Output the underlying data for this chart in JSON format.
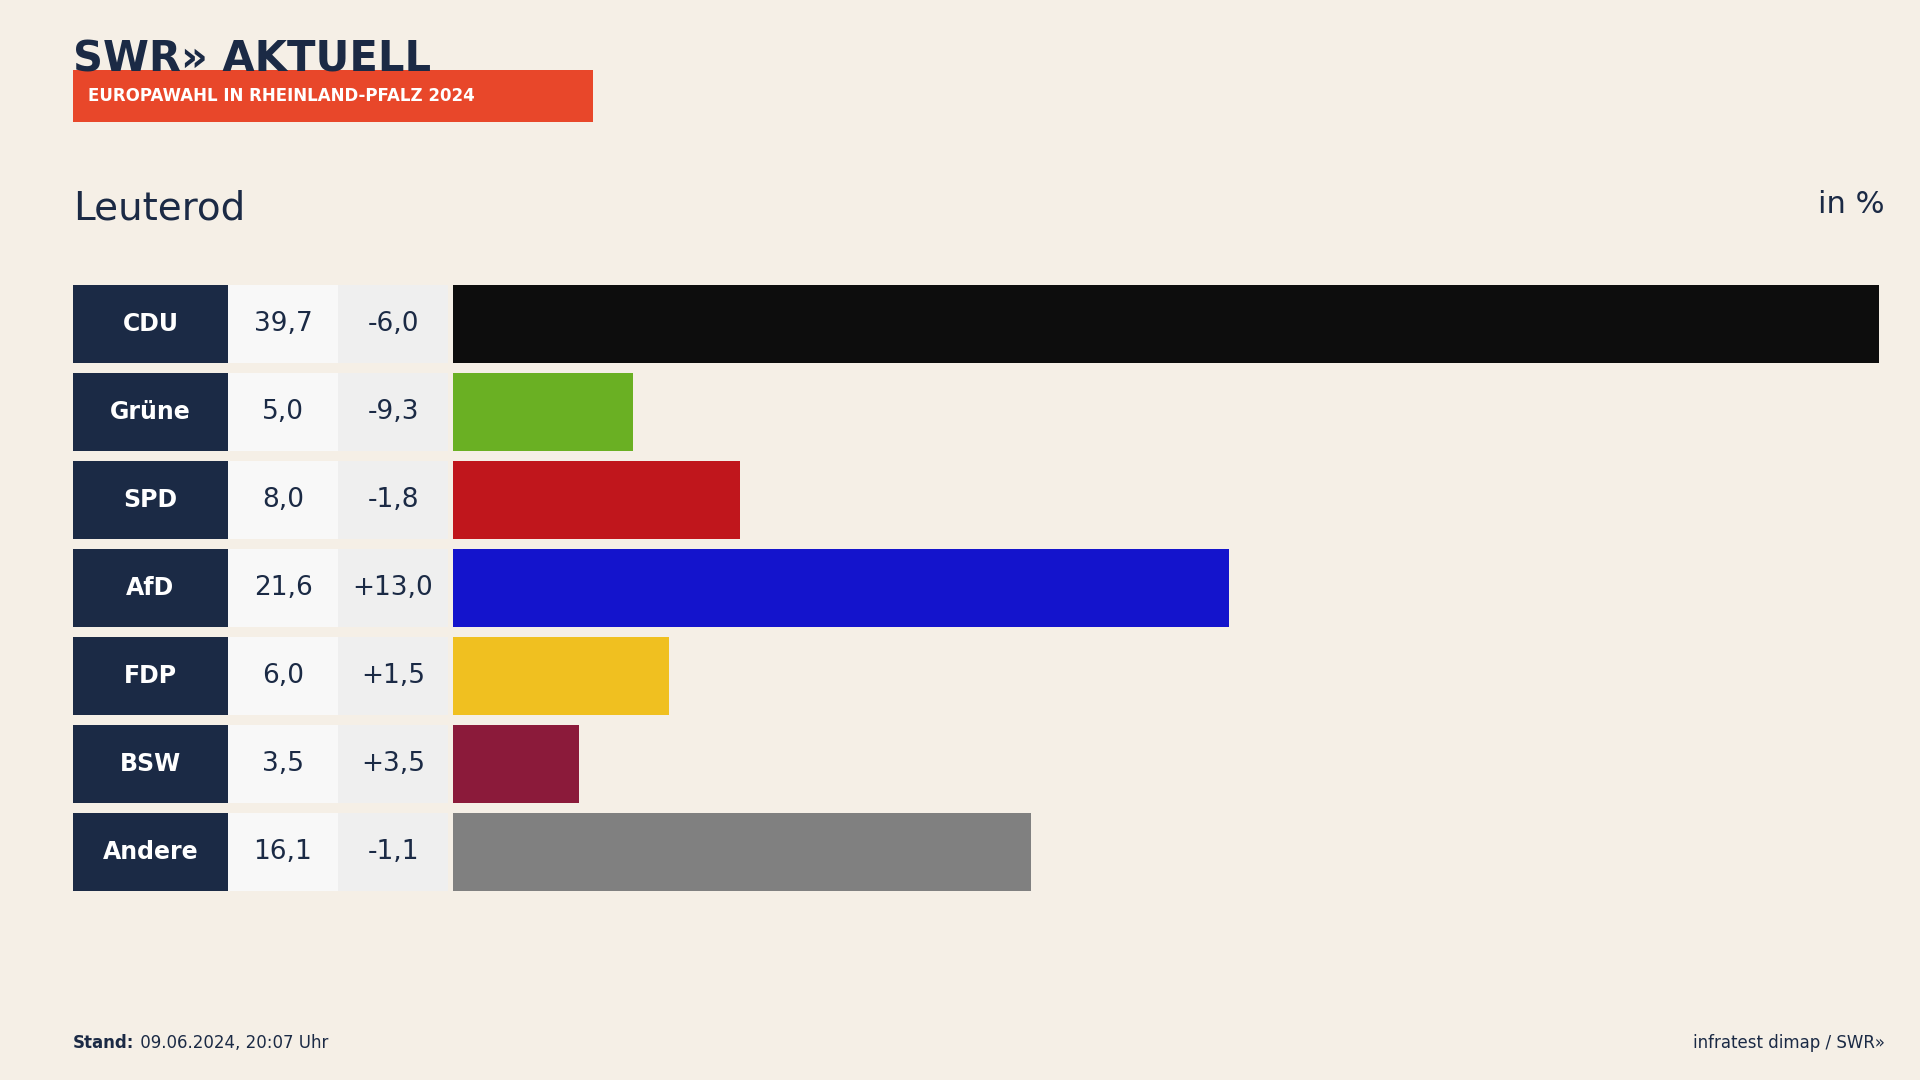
{
  "title_main": "SWR» AKTUELL",
  "subtitle_box": "EUROPAWAHL IN RHEINLAND-PFALZ 2024",
  "subtitle_box_color": "#E8472A",
  "location": "Leuterod",
  "in_percent_label": "in %",
  "background_color": "#F5EFE6",
  "label_box_color": "#1B2A45",
  "label_text_color": "#FFFFFF",
  "value_text_color": "#1B2A45",
  "stand_label": "Stand:",
  "stand_text": " 09.06.2024, 20:07 Uhr",
  "infratest_text": "infratest dimap / SWR»",
  "parties": [
    "CDU",
    "Grüne",
    "SPD",
    "AfD",
    "FDP",
    "BSW",
    "Andere"
  ],
  "values": [
    39.7,
    5.0,
    8.0,
    21.6,
    6.0,
    3.5,
    16.1
  ],
  "changes": [
    "-6,0",
    "-9,3",
    "-1,8",
    "+13,0",
    "+1,5",
    "+3,5",
    "-1,1"
  ],
  "values_display": [
    "39,7",
    "5,0",
    "8,0",
    "21,6",
    "6,0",
    "3,5",
    "16,1"
  ],
  "bar_colors": [
    "#0D0D0D",
    "#6AB023",
    "#C0161C",
    "#1414CC",
    "#F0C020",
    "#8B1A3A",
    "#808080"
  ],
  "max_value": 40.0,
  "fig_width": 19.2,
  "fig_height": 10.8
}
